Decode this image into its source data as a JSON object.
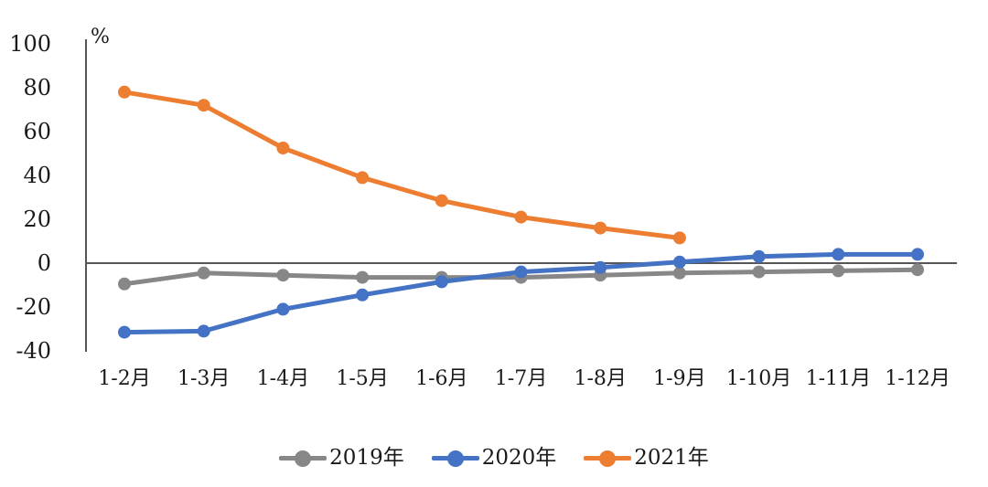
{
  "chart_data": {
    "type": "line",
    "title": "",
    "xlabel": "",
    "ylabel": "%",
    "categories": [
      "1-2月",
      "1-3月",
      "1-4月",
      "1-5月",
      "1-6月",
      "1-7月",
      "1-8月",
      "1-9月",
      "1-10月",
      "1-11月",
      "1-12月"
    ],
    "series": [
      {
        "key": "2019",
        "name": "2019年",
        "color": "#878787",
        "values": [
          -9.5,
          -4.5,
          -5.5,
          -6.5,
          -6.5,
          -6.5,
          -5.5,
          -4.5,
          -4,
          -3.5,
          -3
        ]
      },
      {
        "key": "2020",
        "name": "2020年",
        "color": "#4472C4",
        "values": [
          -31.5,
          -31,
          -21,
          -14.5,
          -8.5,
          -4,
          -2,
          0.5,
          3,
          4,
          4
        ]
      },
      {
        "key": "2021",
        "name": "2021年",
        "color": "#ED7D31",
        "values": [
          78,
          72,
          52.5,
          39,
          28.5,
          21,
          16,
          11.5,
          null,
          null,
          null
        ]
      }
    ],
    "ylim": [
      -40,
      100
    ],
    "y_tick_step": 20,
    "grid": false,
    "legend_position": "bottom",
    "axis": {
      "line_color": "#565656",
      "text_color": "#1a1a1a",
      "unit_label": "%",
      "y_ticks": [
        {
          "label": "100",
          "value": 100
        },
        {
          "label": "80",
          "value": 80
        },
        {
          "label": "60",
          "value": 60
        },
        {
          "label": "40",
          "value": 40
        },
        {
          "label": "20",
          "value": 20
        },
        {
          "label": "0",
          "value": 0
        },
        {
          "label": "-20",
          "value": -20
        },
        {
          "label": "-40",
          "value": -40
        }
      ]
    }
  }
}
